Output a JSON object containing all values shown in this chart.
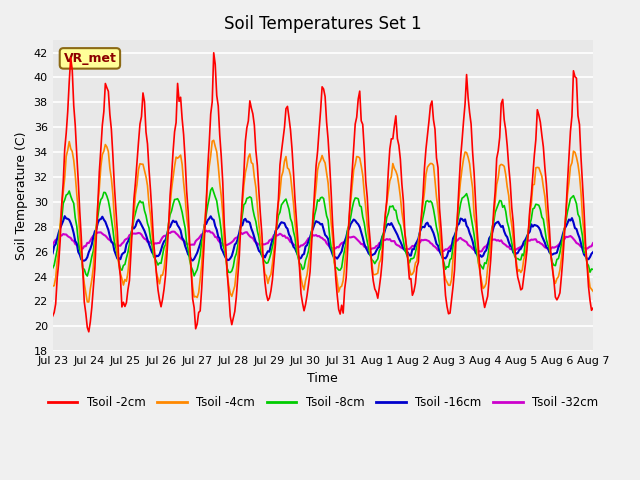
{
  "title": "Soil Temperatures Set 1",
  "xlabel": "Time",
  "ylabel": "Soil Temperature (C)",
  "ylim": [
    18,
    43
  ],
  "yticks": [
    18,
    20,
    22,
    24,
    26,
    28,
    30,
    32,
    34,
    36,
    38,
    40,
    42
  ],
  "bg_color": "#e8e8e8",
  "grid_color": "#ffffff",
  "annotation_text": "VR_met",
  "annotation_bg": "#ffff99",
  "annotation_border": "#8b6914",
  "colors": {
    "2cm": "#ff0000",
    "4cm": "#ff8800",
    "8cm": "#00cc00",
    "16cm": "#0000cc",
    "32cm": "#cc00cc"
  },
  "legend_labels": [
    "Tsoil -2cm",
    "Tsoil -4cm",
    "Tsoil -8cm",
    "Tsoil -16cm",
    "Tsoil -32cm"
  ],
  "x_tick_labels": [
    "Jul 23",
    "Jul 24",
    "Jul 25",
    "Jul 26",
    "Jul 27",
    "Jul 28",
    "Jul 29",
    "Jul 30",
    "Jul 31",
    "Aug 1",
    "Aug 2",
    "Aug 3",
    "Aug 4",
    "Aug 5",
    "Aug 6",
    "Aug 7"
  ],
  "n_days": 15,
  "points_per_day": 24
}
